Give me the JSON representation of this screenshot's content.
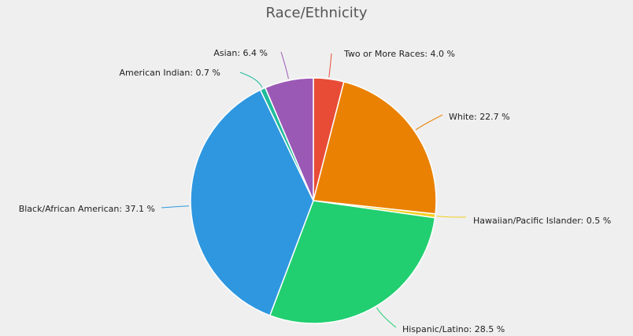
{
  "chart_data": {
    "type": "pie",
    "title": "Race/Ethnicity",
    "categories": [
      "Two or More Races",
      "White",
      "Hawaiian/Pacific Islander",
      "Hispanic/Latino",
      "Black/African American",
      "American Indian",
      "Asian"
    ],
    "values": [
      4.0,
      22.7,
      0.5,
      28.5,
      37.1,
      0.7,
      6.4
    ],
    "labels": [
      "Two or More Races: 4.0 %",
      "White: 22.7 %",
      "Hawaiian/Pacific Islander: 0.5 %",
      "Hispanic/Latino: 28.5 %",
      "Black/African American: 37.1 %",
      "American Indian: 0.7 %",
      "Asian: 6.4 %"
    ],
    "colors": [
      "#e84c36",
      "#ea8103",
      "#f2cf1d",
      "#21cf70",
      "#2f97e0",
      "#1ebc9c",
      "#9b59b6"
    ],
    "legend": "none"
  }
}
